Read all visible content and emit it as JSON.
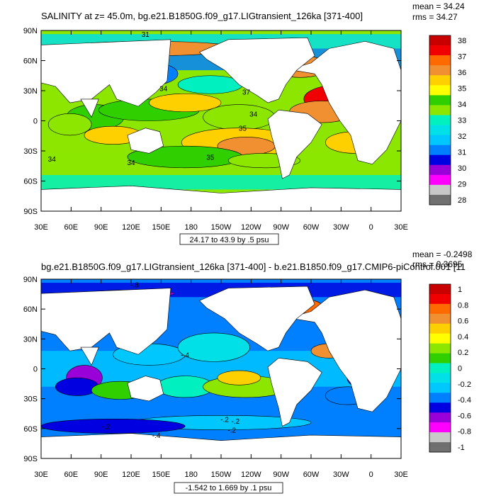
{
  "panels": [
    {
      "id": "top",
      "title": "SALINITY at z=  45.0m, bg.e21.B1850G.f09_g17.LIGtransient_126ka [371-400]",
      "stats": [
        "mean = 34.24",
        "rms = 34.27"
      ],
      "range_label": "24.17 to 43.9 by .5 psu",
      "lat_labels": [
        "90N",
        "60N",
        "30N",
        "0",
        "30S",
        "60S",
        "90S"
      ],
      "lon_labels": [
        "30E",
        "60E",
        "90E",
        "120E",
        "150E",
        "180",
        "150W",
        "120W",
        "90W",
        "60W",
        "30W",
        "0",
        "30E"
      ],
      "colorbar": {
        "labels": [
          "38",
          "37",
          "36",
          "35",
          "34",
          "33",
          "32",
          "31",
          "30",
          "29",
          "28"
        ],
        "colors": [
          "#c80000",
          "#f00000",
          "#ff6a00",
          "#f09030",
          "#ffd000",
          "#ffff00",
          "#30d000",
          "#8ce600",
          "#00f0c0",
          "#00e0e6",
          "#00c8ff",
          "#0080ff",
          "#0000e0",
          "#9a00d8",
          "#ff00ff",
          "#c8c8c8",
          "#707070"
        ]
      },
      "contour_labels": [
        "31",
        "34",
        "34",
        "35",
        "35",
        "34",
        "34",
        "37"
      ]
    },
    {
      "id": "bottom",
      "title": "bg.e21.B1850G.f09_g17.LIGtransient_126ka [371-400] - b.e21.B1850.f09_g17.CMIP6-piControl.001 [11",
      "stats": [
        "mean = -0.2498",
        "rms = 0.3695"
      ],
      "range_label": "-1.542 to 1.669 by .1 psu",
      "lat_labels": [
        "90N",
        "60N",
        "30N",
        "0",
        "30S",
        "60S",
        "90S"
      ],
      "lon_labels": [
        "30E",
        "60E",
        "90E",
        "120E",
        "150E",
        "180",
        "150W",
        "120W",
        "90W",
        "60W",
        "30W",
        "0",
        "30E"
      ],
      "colorbar": {
        "labels": [
          "1",
          "0.8",
          "0.6",
          "0.4",
          "0.2",
          "0",
          "-0.2",
          "-0.4",
          "-0.6",
          "-0.8",
          "-1"
        ],
        "colors": [
          "#c80000",
          "#f00000",
          "#ff6a00",
          "#f09030",
          "#ffd000",
          "#ffff00",
          "#8ce600",
          "#30d000",
          "#00f0c0",
          "#00e0e6",
          "#00c8ff",
          "#0080ff",
          "#0000e0",
          "#9a00d8",
          "#ff00ff",
          "#c8c8c8",
          "#707070"
        ]
      },
      "contour_labels": [
        "-.8",
        "-.4",
        "-.2",
        "-.2",
        "-.2",
        "-.2",
        "-.4"
      ]
    }
  ]
}
